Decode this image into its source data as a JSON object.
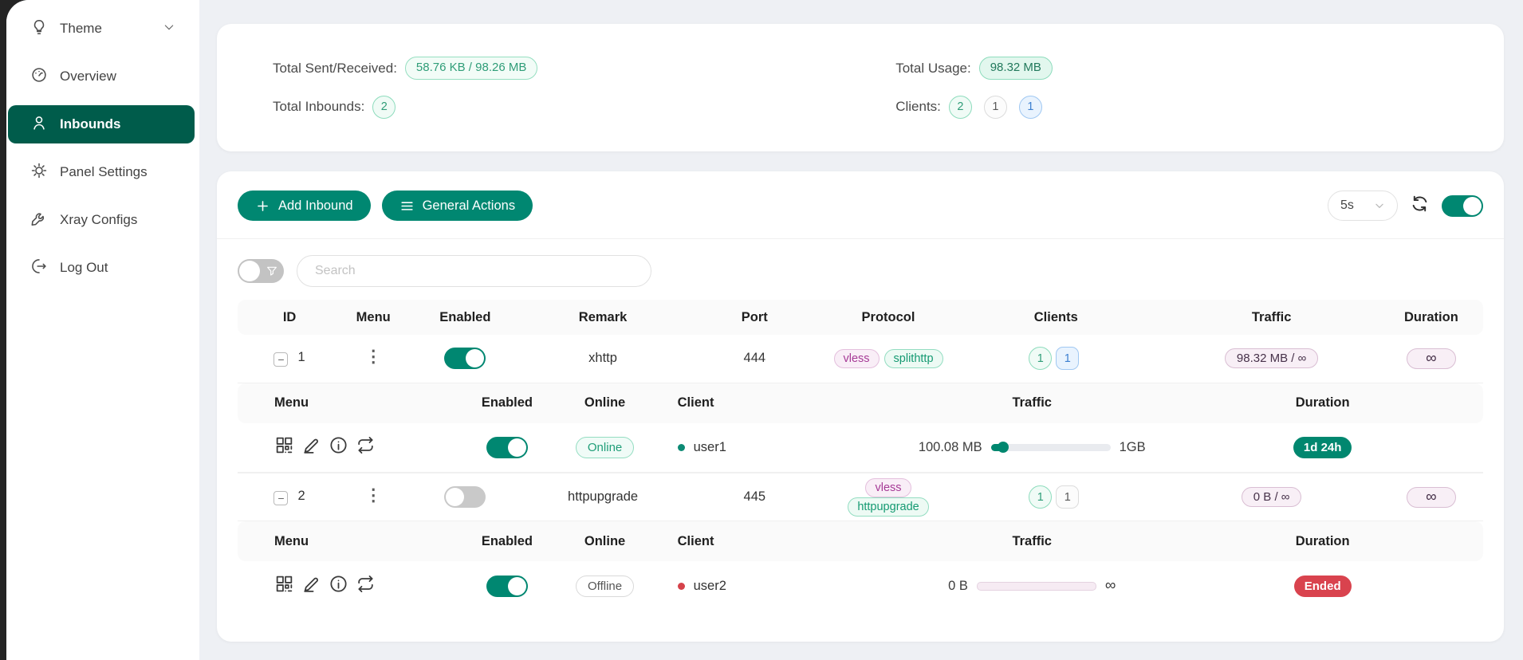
{
  "colors": {
    "primary": "#008771",
    "sidebar_active": "#005c4b",
    "danger": "#d9434e",
    "magenta_tag": "#a63a96",
    "teal_tag": "#159a72",
    "purple_pill_bg": "#f8eff6",
    "page_bg": "#eef0f4"
  },
  "sidebar": {
    "items": [
      {
        "label": "Theme"
      },
      {
        "label": "Overview"
      },
      {
        "label": "Inbounds"
      },
      {
        "label": "Panel Settings"
      },
      {
        "label": "Xray Configs"
      },
      {
        "label": "Log Out"
      }
    ]
  },
  "stats": {
    "total_sent_received_label": "Total Sent/Received:",
    "total_sent_received_value": "58.76 KB / 98.26 MB",
    "total_inbounds_label": "Total Inbounds:",
    "total_inbounds_value": "2",
    "total_usage_label": "Total Usage:",
    "total_usage_value": "98.32 MB",
    "clients_label": "Clients:",
    "client_counts": [
      {
        "value": "2",
        "variant": "green"
      },
      {
        "value": "1",
        "variant": "gray"
      },
      {
        "value": "1",
        "variant": "blue"
      }
    ]
  },
  "toolbar": {
    "add_inbound_label": "Add Inbound",
    "general_actions_label": "General Actions",
    "refresh_interval": "5s"
  },
  "search": {
    "placeholder": "Search"
  },
  "table": {
    "headers": [
      "ID",
      "Menu",
      "Enabled",
      "Remark",
      "Port",
      "Protocol",
      "Clients",
      "Traffic",
      "Duration"
    ],
    "sub_headers": [
      "Menu",
      "Enabled",
      "Online",
      "Client",
      "Traffic",
      "Duration"
    ],
    "rows": [
      {
        "id": "1",
        "enabled": true,
        "remark": "xhttp",
        "port": "444",
        "protocols": [
          "vless",
          "splithttp"
        ],
        "client_counts": [
          {
            "value": "1",
            "variant": "green"
          },
          {
            "value": "1",
            "variant": "blue"
          }
        ],
        "traffic": "98.32 MB / ∞",
        "duration": "∞",
        "client": {
          "enabled": true,
          "status": "Online",
          "name": "user1",
          "traffic_used": "100.08 MB",
          "traffic_limit": "1GB",
          "progress_pct": 10,
          "duration": "1d 24h"
        }
      },
      {
        "id": "2",
        "enabled": false,
        "remark": "httpupgrade",
        "port": "445",
        "protocols": [
          "vless",
          "httpupgrade"
        ],
        "client_counts": [
          {
            "value": "1",
            "variant": "green"
          },
          {
            "value": "1",
            "variant": "gray"
          }
        ],
        "traffic": "0 B / ∞",
        "duration": "∞",
        "client": {
          "enabled": true,
          "status": "Offline",
          "name": "user2",
          "traffic_used": "0 B",
          "traffic_limit": "∞",
          "progress_pct": 0,
          "duration": "Ended"
        }
      }
    ]
  }
}
